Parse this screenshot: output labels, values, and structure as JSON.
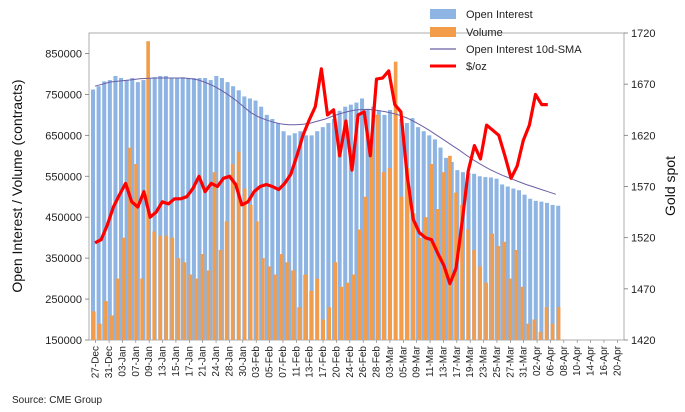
{
  "chart_data": {
    "type": "bar",
    "source": "Source: CME Group",
    "ylabel_left": "Open Interest / Volume (contracts)",
    "ylabel_right": "Gold spot",
    "ylim_left": [
      150000,
      900000
    ],
    "ylim_right": [
      1420,
      1720
    ],
    "yticks_left": [
      "150000",
      "250000",
      "350000",
      "450000",
      "550000",
      "650000",
      "750000",
      "850000"
    ],
    "yticks_right": [
      "1420",
      "1470",
      "1520",
      "1570",
      "1620",
      "1670",
      "1720"
    ],
    "x_tick_labels": [
      "27-Dec",
      "31-Dec",
      "03-Jan",
      "07-Jan",
      "09-Jan",
      "13-Jan",
      "15-Jan",
      "17-Jan",
      "21-Jan",
      "24-Jan",
      "28-Jan",
      "30-Jan",
      "03-Feb",
      "05-Feb",
      "07-Feb",
      "11-Feb",
      "13-Feb",
      "17-Feb",
      "20-Feb",
      "24-Feb",
      "26-Feb",
      "28-Feb",
      "03-Mar",
      "05-Mar",
      "09-Mar",
      "11-Mar",
      "13-Mar",
      "17-Mar",
      "19-Mar",
      "23-Mar",
      "25-Mar",
      "27-Mar",
      "31-Mar",
      "02-Apr",
      "06-Apr",
      "08-Apr",
      "10-Apr",
      "14-Apr",
      "16-Apr",
      "20-Apr"
    ],
    "legend": [
      {
        "name": "Open Interest",
        "color": "#8db4e2",
        "kind": "bar"
      },
      {
        "name": "Volume",
        "color": "#f39c4a",
        "kind": "bar"
      },
      {
        "name": "Open Interest 10d-SMA",
        "color": "#6b5fa8",
        "kind": "line"
      },
      {
        "name": "$/oz",
        "color": "#ff0000",
        "kind": "line"
      }
    ],
    "series": [
      {
        "name": "Open Interest",
        "axis": "left",
        "values": [
          762000,
          770000,
          782000,
          785000,
          795000,
          790000,
          785000,
          790000,
          780000,
          785000,
          790000,
          792000,
          795000,
          795000,
          790000,
          790000,
          792000,
          790000,
          790000,
          790000,
          790000,
          785000,
          795000,
          790000,
          780000,
          770000,
          760000,
          745000,
          740000,
          735000,
          720000,
          700000,
          690000,
          680000,
          660000,
          650000,
          655000,
          660000,
          650000,
          650000,
          660000,
          670000,
          680000,
          690000,
          710000,
          720000,
          725000,
          730000,
          740000,
          715000,
          720000,
          710000,
          700000,
          712000,
          705000,
          690000,
          680000,
          692000,
          670000,
          660000,
          650000,
          640000,
          620000,
          595000,
          585000,
          565000,
          560000,
          558000,
          556000,
          550000,
          548000,
          547000,
          544000,
          530000,
          525000,
          520000,
          516000,
          505000,
          495000,
          490000,
          488000,
          485000,
          480000,
          478000
        ]
      },
      {
        "name": "Volume",
        "axis": "left",
        "values": [
          220000,
          190000,
          245000,
          210000,
          300000,
          400000,
          620000,
          580000,
          300000,
          880000,
          415000,
          405000,
          405000,
          400000,
          350000,
          340000,
          310000,
          300000,
          360000,
          320000,
          560000,
          370000,
          440000,
          580000,
          610000,
          520000,
          480000,
          440000,
          350000,
          330000,
          310000,
          360000,
          340000,
          320000,
          230000,
          310000,
          270000,
          300000,
          200000,
          230000,
          340000,
          280000,
          290000,
          310000,
          420000,
          500000,
          620000,
          700000,
          560000,
          570000,
          830000,
          500000,
          570000,
          460000,
          400000,
          450000,
          580000,
          470000,
          560000,
          600000,
          510000,
          480000,
          420000,
          370000,
          330000,
          290000,
          410000,
          380000,
          390000,
          300000,
          370000,
          280000,
          190000,
          200000,
          170000,
          230000,
          190000,
          230000
        ]
      },
      {
        "name": "Open Interest 10d-SMA",
        "axis": "left",
        "values": [
          770000,
          775000,
          780000,
          782000,
          784000,
          786000,
          788000,
          789000,
          790000,
          790000,
          790000,
          790000,
          790000,
          788000,
          785000,
          778000,
          770000,
          760000,
          748000,
          735000,
          720000,
          705000,
          695000,
          688000,
          682000,
          678000,
          676000,
          676000,
          677000,
          680000,
          685000,
          690000,
          697000,
          703000,
          708000,
          712000,
          713000,
          713000,
          711000,
          708000,
          704000,
          699000,
          692000,
          683000,
          673000,
          662000,
          650000,
          638000,
          626000,
          614000,
          601000,
          589000,
          578000,
          568000,
          559000,
          551000,
          544000,
          537000,
          530000,
          524000,
          518000,
          512000,
          506000
        ]
      },
      {
        "name": "$/oz",
        "axis": "right",
        "values": [
          1515,
          1518,
          1532,
          1550,
          1562,
          1573,
          1555,
          1550,
          1565,
          1540,
          1545,
          1555,
          1553,
          1558,
          1558,
          1560,
          1568,
          1580,
          1565,
          1573,
          1570,
          1578,
          1580,
          1572,
          1552,
          1555,
          1565,
          1570,
          1572,
          1570,
          1567,
          1573,
          1582,
          1600,
          1620,
          1635,
          1648,
          1685,
          1640,
          1645,
          1600,
          1634,
          1586,
          1640,
          1643,
          1600,
          1675,
          1676,
          1683,
          1650,
          1643,
          1582,
          1538,
          1525,
          1520,
          1518,
          1505,
          1493,
          1475,
          1490,
          1535,
          1585,
          1610,
          1597,
          1630,
          1625,
          1620,
          1600,
          1578,
          1590,
          1615,
          1630,
          1660,
          1650,
          1650
        ]
      }
    ]
  }
}
